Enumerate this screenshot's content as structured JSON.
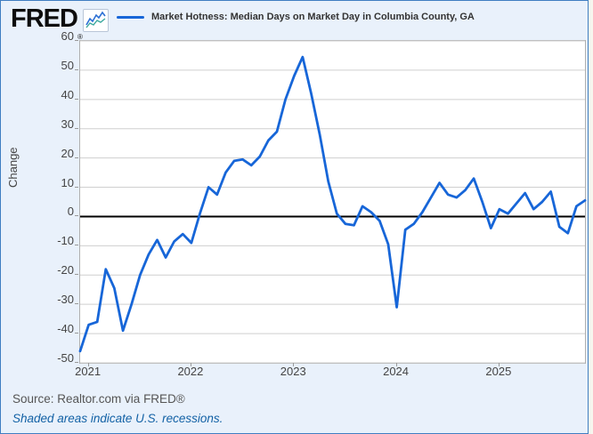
{
  "header": {
    "logo_text": "FRED",
    "logo_registered": "®",
    "legend_label": "Market Hotness: Median Days on Market Day in Columbia County, GA"
  },
  "footer": {
    "source_text": "Source: Realtor.com via FRED®",
    "recession_note": "Shaded areas indicate U.S. recessions."
  },
  "colors": {
    "line_blue": "#1766d8",
    "box_background": "#e9f1fb",
    "box_border": "#3f7ec1",
    "plot_border": "#b0b0b0",
    "grid": "#cfcfcf",
    "zero_line": "#000000",
    "axis_text": "#444444",
    "source_text": "#555555",
    "note_blue": "#1261a5",
    "icon_line_teal": "#3aa89e"
  },
  "chart_data": {
    "type": "line",
    "title": "Market Hotness: Median Days on Market Day in Columbia County, GA",
    "ylabel": "Change",
    "frequency": "monthly",
    "x_start": "2020-12",
    "x_end": "2025-11",
    "ylim": [
      -50,
      60
    ],
    "y_ticks": [
      60,
      50,
      40,
      30,
      20,
      10,
      0,
      -10,
      -20,
      -30,
      -40,
      -50
    ],
    "x_tick_labels": [
      "2021",
      "2022",
      "2023",
      "2024",
      "2025"
    ],
    "x_tick_month_offsets": [
      1,
      13,
      25,
      37,
      49
    ],
    "grid": true,
    "legend_position": "top",
    "line_color": "#1766d8",
    "values": [
      -46,
      -37,
      -36,
      -18,
      -24.5,
      -39,
      -30,
      -20,
      -13,
      -8,
      -14,
      -8.5,
      -6,
      -9,
      1,
      10,
      7.5,
      15,
      19,
      19.5,
      17.5,
      20.5,
      26,
      29,
      40,
      48,
      54.5,
      42,
      28,
      12,
      1,
      -2.5,
      -3,
      3.5,
      1.5,
      -1.5,
      -9.5,
      -31,
      -4.5,
      -2.5,
      1.5,
      6.5,
      11.5,
      7.5,
      6.5,
      9,
      13,
      5,
      -4,
      2.5,
      1,
      4.5,
      8,
      2.5,
      5,
      8.5,
      -3.5,
      -5.7,
      3.5,
      5.5
    ]
  }
}
